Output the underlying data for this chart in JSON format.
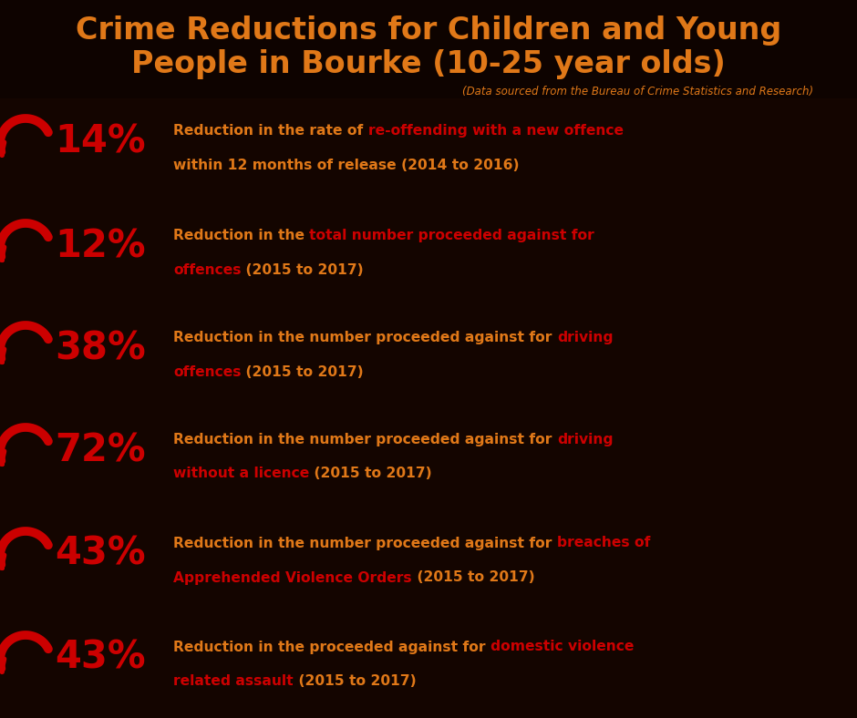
{
  "title_line1": "Crime Reductions for Children and Young",
  "title_line2": "People in Bourke (10-25 year olds)",
  "subtitle": "(Data sourced from the Bureau of Crime Statistics and Research)",
  "bg_color": "#1a0800",
  "red_color": "#CC0000",
  "orange_color": "#E07818",
  "rows": [
    {
      "pct": "14%",
      "line1_orange": "Reduction in the rate of ",
      "line1_red": "re-offending with a new offence",
      "line2_red": "",
      "line2_orange": "within 12 months of release (2014 to 2016)"
    },
    {
      "pct": "12%",
      "line1_orange": "Reduction in the ",
      "line1_red": "total number proceeded against for",
      "line2_red": "offences",
      "line2_orange": " (2015 to 2017)"
    },
    {
      "pct": "38%",
      "line1_orange": "Reduction in the number proceeded against for ",
      "line1_red": "driving",
      "line2_red": "offences",
      "line2_orange": " (2015 to 2017)"
    },
    {
      "pct": "72%",
      "line1_orange": "Reduction in the number proceeded against for ",
      "line1_red": "driving",
      "line2_red": "without a licence",
      "line2_orange": " (2015 to 2017)"
    },
    {
      "pct": "43%",
      "line1_orange": "Reduction in the number proceeded against for ",
      "line1_red": "breaches of",
      "line2_red": "Apprehended Violence Orders",
      "line2_orange": " (2015 to 2017)"
    },
    {
      "pct": "43%",
      "line1_orange": "Reduction in the proceeded against for ",
      "line1_red": "domestic violence",
      "line2_red": "related assault",
      "line2_orange": " (2015 to 2017)"
    }
  ]
}
